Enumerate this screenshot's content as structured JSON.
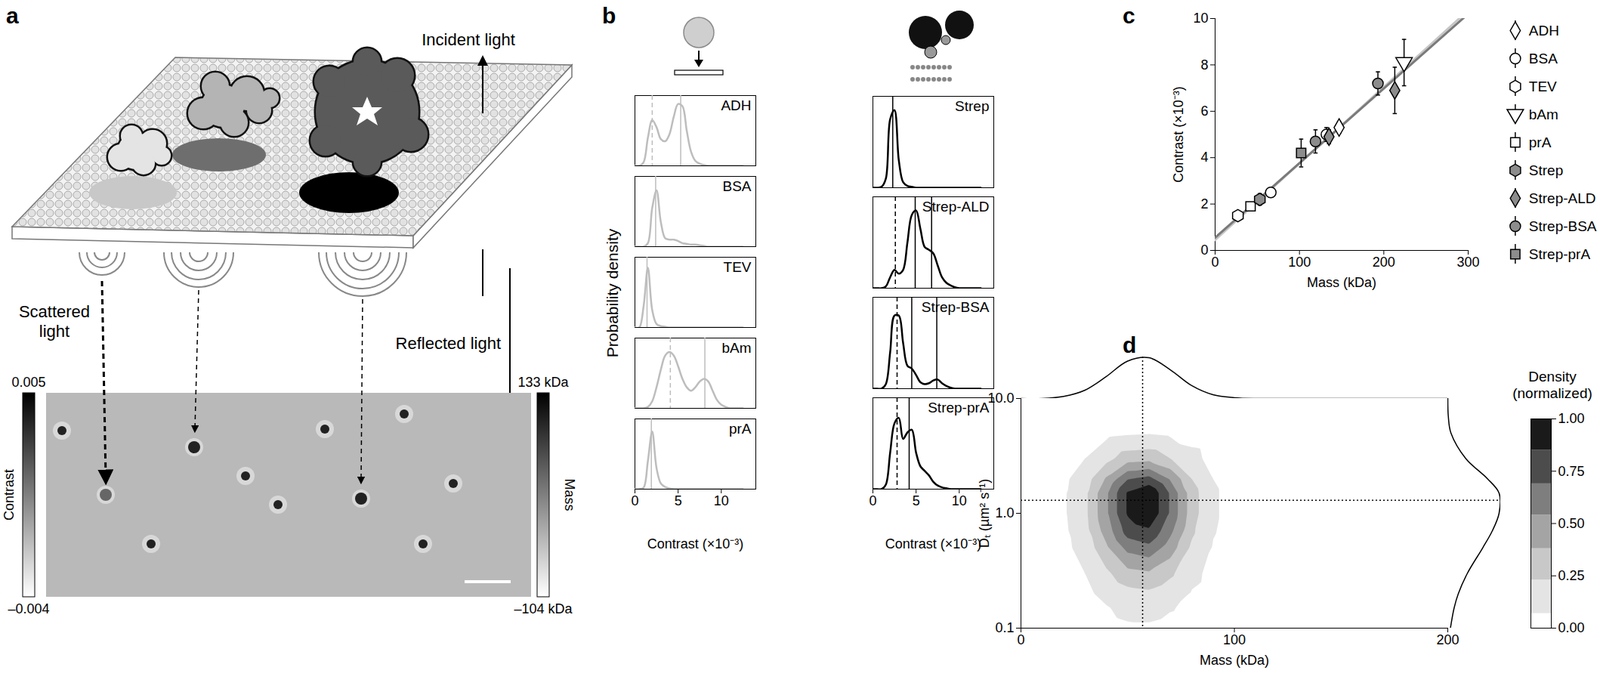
{
  "chart_data": [
    {
      "panel": "a",
      "type": "diagram",
      "labels": {
        "incident": "Incident light",
        "reflected": "Reflected light",
        "scattered": "Scattered light"
      },
      "colorbars": [
        {
          "label": "Contrast",
          "lim": [
            -0.004,
            0.005
          ],
          "ticks": [
            {
              "value": -0.004,
              "label": "–0.004"
            },
            0.005
          ]
        },
        {
          "label": "Mass",
          "lim": [
            -104,
            133
          ],
          "ticks": [
            {
              "value": -104,
              "label": "–104 kDa"
            },
            {
              "value": 133,
              "label": "133 kDa"
            }
          ]
        }
      ]
    },
    {
      "panel": "b",
      "type": "density",
      "ylabel": "Probability density",
      "xlabel": "Contrast (×10⁻³)",
      "xlim": [
        0,
        14
      ],
      "xticks": [
        0,
        5,
        10
      ],
      "ylim": [
        0,
        1
      ],
      "tick_labels": "x",
      "x": [
        0,
        0.5,
        1,
        1.5,
        2,
        2.5,
        3,
        3.5,
        4,
        4.5,
        5,
        5.5,
        6,
        6.5,
        7,
        7.5,
        8,
        8.5,
        9,
        9.5,
        10,
        10.5,
        11,
        11.5,
        12,
        12.5
      ],
      "columns": [
        {
          "color": "#bdbdbd",
          "series": [
            {
              "name": "ADH",
              "values": [
                0,
                0,
                0.05,
                0.4,
                0.65,
                0.55,
                0.38,
                0.35,
                0.45,
                0.7,
                0.88,
                0.85,
                0.5,
                0.2,
                0.07,
                0.03,
                0.01,
                0,
                0,
                0,
                0,
                0,
                0,
                0,
                0,
                0
              ],
              "peaks": [
                {
                  "x": 2.0,
                  "line_style": "dashed"
                },
                {
                  "x": 5.3,
                  "line_style": "solid"
                }
              ]
            },
            {
              "name": "BSA",
              "values": [
                0,
                0,
                0,
                0.05,
                0.55,
                0.8,
                0.35,
                0.12,
                0.1,
                0.1,
                0.08,
                0.05,
                0.04,
                0.03,
                0.03,
                0.02,
                0.01,
                0,
                0,
                0,
                0,
                0,
                0,
                0,
                0,
                0
              ],
              "peaks": [
                {
                  "x": 2.4,
                  "line_style": "solid"
                }
              ]
            },
            {
              "name": "TEV",
              "values": [
                0,
                0,
                0.3,
                0.85,
                0.25,
                0.05,
                0.02,
                0.01,
                0,
                0,
                0,
                0,
                0,
                0,
                0,
                0,
                0,
                0,
                0,
                0,
                0,
                0,
                0,
                0,
                0,
                0
              ],
              "peaks": [
                {
                  "x": 1.4,
                  "line_style": "solid"
                }
              ]
            },
            {
              "name": "bAm",
              "values": [
                0,
                0,
                0,
                0.02,
                0.1,
                0.3,
                0.55,
                0.75,
                0.8,
                0.75,
                0.6,
                0.42,
                0.3,
                0.25,
                0.3,
                0.38,
                0.42,
                0.38,
                0.25,
                0.12,
                0.05,
                0.02,
                0,
                0,
                0,
                0
              ],
              "peaks": [
                {
                  "x": 4.1,
                  "line_style": "dashed"
                },
                {
                  "x": 8.1,
                  "line_style": "solid"
                }
              ]
            },
            {
              "name": "prA",
              "values": [
                0,
                0,
                0.02,
                0.4,
                0.82,
                0.3,
                0.08,
                0.03,
                0.01,
                0,
                0,
                0,
                0,
                0,
                0,
                0,
                0,
                0,
                0,
                0,
                0,
                0,
                0,
                0,
                0,
                0
              ],
              "peaks": [
                {
                  "x": 1.9,
                  "line_style": "solid"
                }
              ]
            }
          ]
        },
        {
          "color": "#000000",
          "series": [
            {
              "name": "Strep",
              "values": [
                0,
                0,
                0.01,
                0.1,
                0.75,
                0.85,
                0.3,
                0.06,
                0.02,
                0.01,
                0,
                0,
                0,
                0,
                0,
                0,
                0,
                0,
                0,
                0,
                0,
                0,
                0,
                0,
                0,
                0
              ],
              "peaks": [
                {
                  "x": 2.3,
                  "line_style": "solid"
                }
              ]
            },
            {
              "name": "Strep-ALD",
              "values": [
                0,
                0,
                0,
                0.02,
                0.12,
                0.2,
                0.16,
                0.2,
                0.5,
                0.8,
                0.85,
                0.65,
                0.45,
                0.42,
                0.38,
                0.25,
                0.12,
                0.06,
                0.03,
                0.01,
                0,
                0,
                0,
                0,
                0,
                0
              ],
              "peaks": [
                {
                  "x": 2.6,
                  "line_style": "dashed"
                },
                {
                  "x": 4.9,
                  "line_style": "solid"
                },
                {
                  "x": 6.8,
                  "line_style": "solid"
                }
              ]
            },
            {
              "name": "Strep-BSA",
              "values": [
                0,
                0,
                0,
                0.05,
                0.4,
                0.8,
                0.8,
                0.5,
                0.25,
                0.22,
                0.15,
                0.07,
                0.05,
                0.06,
                0.09,
                0.1,
                0.06,
                0.03,
                0.01,
                0,
                0,
                0,
                0,
                0,
                0,
                0
              ],
              "peaks": [
                {
                  "x": 2.8,
                  "line_style": "dashed"
                },
                {
                  "x": 4.5,
                  "line_style": "solid"
                },
                {
                  "x": 7.4,
                  "line_style": "solid"
                }
              ]
            },
            {
              "name": "Strep-prA",
              "values": [
                0,
                0,
                0,
                0.05,
                0.4,
                0.72,
                0.78,
                0.55,
                0.62,
                0.65,
                0.4,
                0.25,
                0.2,
                0.15,
                0.08,
                0.04,
                0.02,
                0.01,
                0,
                0,
                0,
                0,
                0,
                0,
                0,
                0
              ],
              "peaks": [
                {
                  "x": 2.8,
                  "line_style": "dashed"
                },
                {
                  "x": 4.2,
                  "line_style": "solid"
                }
              ]
            }
          ]
        }
      ]
    },
    {
      "panel": "c",
      "type": "scatter",
      "xlabel": "Mass (kDa)",
      "ylabel": "Contrast (×10⁻³)",
      "xlim": [
        0,
        300
      ],
      "xticks": [
        0,
        100,
        200,
        300
      ],
      "ylim": [
        0,
        10
      ],
      "yticks": [
        0,
        2,
        4,
        6,
        8,
        10
      ],
      "legend": "right",
      "fit_lines": [
        {
          "color": "#c6c6c6",
          "x": [
            0,
            300
          ],
          "values": [
            0.45,
            10.35
          ]
        },
        {
          "color": "#7a7a7a",
          "x": [
            0,
            300
          ],
          "values": [
            0.55,
            10.2
          ]
        }
      ],
      "series": [
        {
          "name": "ADH",
          "marker": "diamond",
          "color": "#ffffff",
          "x": [
            147
          ],
          "values": [
            5.3
          ],
          "errors": [
            0.25
          ]
        },
        {
          "name": "BSA",
          "marker": "circle",
          "color": "#ffffff",
          "x": [
            66,
            132
          ],
          "values": [
            2.5,
            5.0
          ],
          "errors": [
            0.15,
            0.3
          ]
        },
        {
          "name": "TEV",
          "marker": "hexagon",
          "color": "#ffffff",
          "x": [
            27
          ],
          "values": [
            1.5
          ],
          "errors": [
            0.1
          ]
        },
        {
          "name": "bAm",
          "marker": "triangle-down",
          "color": "#ffffff",
          "x": [
            224
          ],
          "values": [
            8.1
          ],
          "errors": [
            1.0
          ]
        },
        {
          "name": "prA",
          "marker": "square",
          "color": "#ffffff",
          "x": [
            42
          ],
          "values": [
            1.9
          ],
          "errors": [
            0.15
          ]
        },
        {
          "name": "Strep",
          "marker": "hexagon",
          "color": "#8c8c8c",
          "x": [
            53
          ],
          "values": [
            2.2
          ],
          "errors": [
            0.25
          ]
        },
        {
          "name": "Strep-ALD",
          "marker": "diamond",
          "color": "#8c8c8c",
          "x": [
            135,
            213
          ],
          "values": [
            4.9,
            6.9
          ],
          "errors": [
            0.3,
            1.0
          ]
        },
        {
          "name": "Strep-BSA",
          "marker": "circle",
          "color": "#8c8c8c",
          "x": [
            119,
            193
          ],
          "values": [
            4.7,
            7.2
          ],
          "errors": [
            0.5,
            0.5
          ]
        },
        {
          "name": "Strep-prA",
          "marker": "square",
          "color": "#8c8c8c",
          "x": [
            102
          ],
          "values": [
            4.2
          ],
          "errors": [
            0.6
          ]
        }
      ]
    },
    {
      "panel": "d",
      "type": "contour",
      "xlabel": "Mass (kDa)",
      "ylabel": "Dₜ (µm² s⁻¹)",
      "xlim": [
        0,
        200
      ],
      "xticks": [
        0,
        100,
        200
      ],
      "ylim": [
        0.1,
        10
      ],
      "yticks": [
        0.1,
        {
          "value": 1,
          "label": "1.0"
        },
        {
          "value": 10,
          "label": "10.0"
        }
      ],
      "log": "y",
      "reference": {
        "mass": 57,
        "dt": 1.3
      },
      "cells": {
        "mass": [
          20,
          30,
          40,
          50,
          60,
          70,
          80,
          90,
          100
        ],
        "dt": [
          0.1,
          0.15,
          0.2,
          0.3,
          0.5,
          0.7,
          1,
          1.5,
          2,
          3,
          5,
          7,
          10
        ],
        "density": [
          [
            0,
            0.01,
            0.03,
            0.05,
            0.05,
            0.03,
            0.02,
            0,
            0
          ],
          [
            0.01,
            0.02,
            0.06,
            0.11,
            0.12,
            0.08,
            0.04,
            0.01,
            0
          ],
          [
            0.01,
            0.04,
            0.11,
            0.18,
            0.2,
            0.14,
            0.06,
            0.02,
            0
          ],
          [
            0.02,
            0.07,
            0.2,
            0.33,
            0.36,
            0.26,
            0.11,
            0.03,
            0.01
          ],
          [
            0.03,
            0.13,
            0.35,
            0.59,
            0.65,
            0.46,
            0.2,
            0.06,
            0.01
          ],
          [
            0.04,
            0.17,
            0.45,
            0.76,
            0.82,
            0.58,
            0.26,
            0.08,
            0.02
          ],
          [
            0.05,
            0.19,
            0.51,
            0.87,
            1.0,
            0.67,
            0.3,
            0.09,
            0.02
          ],
          [
            0.05,
            0.19,
            0.51,
            0.87,
            1.0,
            0.67,
            0.3,
            0.09,
            0.02
          ],
          [
            0.04,
            0.15,
            0.4,
            0.68,
            0.74,
            0.52,
            0.23,
            0.07,
            0.02
          ],
          [
            0.02,
            0.07,
            0.18,
            0.31,
            0.33,
            0.23,
            0.11,
            0.03,
            0.01
          ],
          [
            0,
            0.01,
            0.03,
            0.05,
            0.06,
            0.04,
            0.02,
            0.01,
            0
          ],
          [
            0,
            0,
            0.01,
            0.01,
            0.01,
            0.01,
            0,
            0,
            0
          ],
          [
            0,
            0,
            0,
            0,
            0,
            0,
            0,
            0,
            0
          ]
        ]
      },
      "marginal_mass": {
        "lim": [
          0,
          1
        ],
        "x": [
          0,
          10,
          20,
          30,
          40,
          50,
          60,
          70,
          80,
          90,
          100,
          110,
          120,
          130,
          140,
          150,
          160,
          170,
          180,
          190,
          200
        ],
        "values": [
          0,
          0,
          0.05,
          0.2,
          0.53,
          0.9,
          0.98,
          0.69,
          0.31,
          0.09,
          0.02,
          0,
          0,
          0,
          0,
          0,
          0,
          0,
          0,
          0,
          0
        ]
      },
      "marginal_dt": {
        "lim": [
          0,
          1
        ],
        "y": [
          0.1,
          0.15,
          0.2,
          0.3,
          0.5,
          0.7,
          1,
          1.5,
          2,
          3,
          5,
          7,
          10
        ],
        "values": [
          0.05,
          0.12,
          0.2,
          0.37,
          0.66,
          0.84,
          0.97,
          0.97,
          0.75,
          0.34,
          0.06,
          0.01,
          0
        ]
      },
      "colorbar": {
        "label": "Density (normalized)",
        "lim": [
          0,
          1
        ],
        "ticks": [
          {
            "value": 0,
            "label": "0.00"
          },
          0.25,
          {
            "value": 0.5,
            "label": "0.50"
          },
          0.75,
          {
            "value": 1,
            "label": "1.00"
          }
        ],
        "levels": [
          0,
          0.07,
          0.23,
          0.38,
          0.54,
          0.69,
          0.85,
          1
        ],
        "colors": [
          "#ffffff",
          "#e4e4e4",
          "#c8c8c8",
          "#a4a4a4",
          "#7e7e7e",
          "#4c4c4c",
          "#1a1a1a"
        ]
      }
    }
  ]
}
